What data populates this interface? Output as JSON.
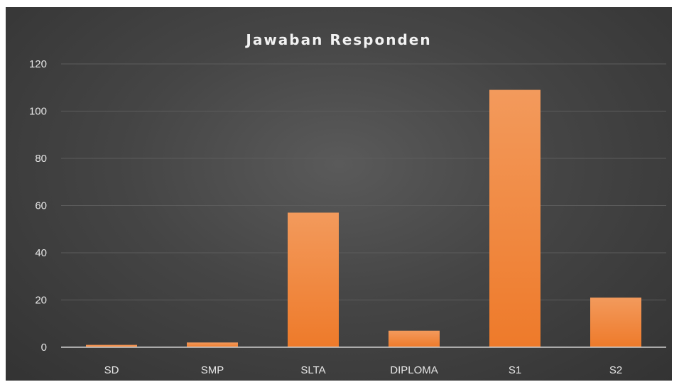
{
  "chart_data": {
    "type": "bar",
    "title": "Jawaban Responden",
    "categories": [
      "SD",
      "SMP",
      "SLTA",
      "DIPLOMA",
      "S1",
      "S2"
    ],
    "values": [
      1,
      2,
      57,
      7,
      109,
      21
    ],
    "yticks": [
      "0",
      "20",
      "40",
      "60",
      "80",
      "100",
      "120"
    ],
    "ylim": [
      0,
      120
    ],
    "grid": true,
    "legend": "none",
    "colors": {
      "bar_top": "#f39a5c",
      "bar_bottom": "#ee7a2a",
      "background": "#474747",
      "text": "#e6e6e6",
      "gridline": "#5c5c5c",
      "axis": "#cfcfcf"
    }
  }
}
